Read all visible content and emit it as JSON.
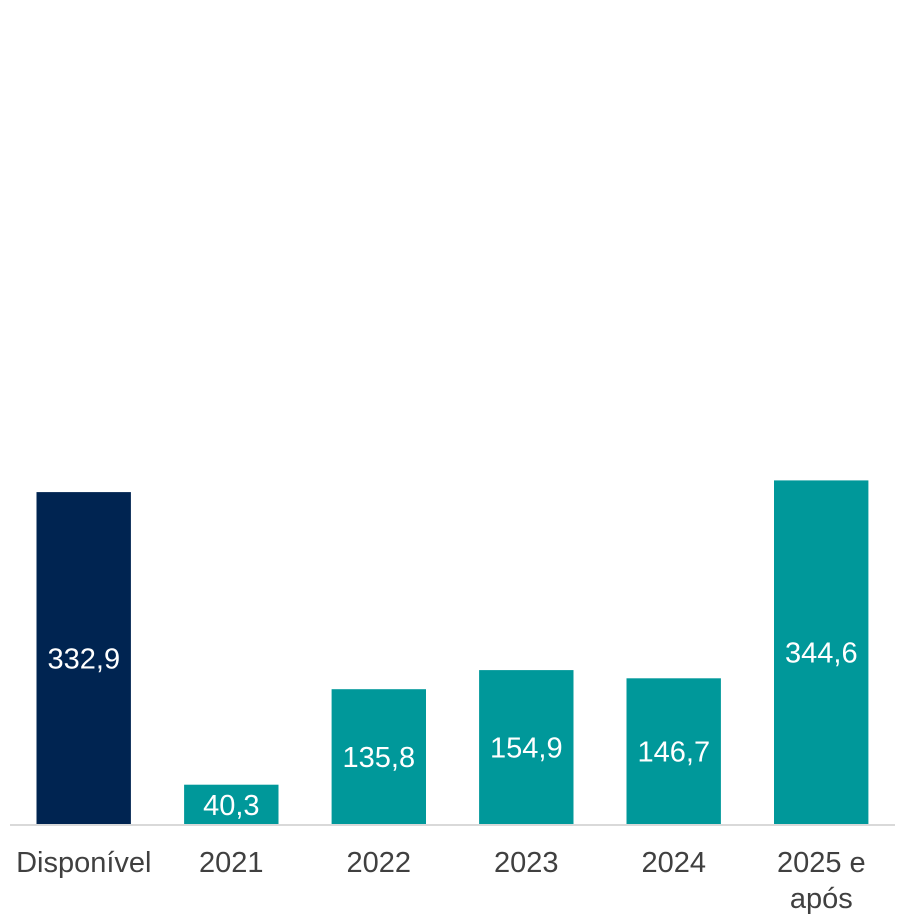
{
  "chart_data": {
    "type": "bar",
    "categories": [
      "Disponível",
      "2021",
      "2022",
      "2023",
      "2024",
      "2025 e após"
    ],
    "category_lines": [
      [
        "Disponível"
      ],
      [
        "2021"
      ],
      [
        "2022"
      ],
      [
        "2023"
      ],
      [
        "2024"
      ],
      [
        "2025 e",
        "após"
      ]
    ],
    "values": [
      332.9,
      40.3,
      135.8,
      154.9,
      146.7,
      344.6
    ],
    "value_labels": [
      "332,9",
      "40,3",
      "135,8",
      "154,9",
      "146,7",
      "344,6"
    ],
    "bar_colors": [
      "#002451",
      "#00989A",
      "#00989A",
      "#00989A",
      "#00989A",
      "#00989A"
    ],
    "title": "",
    "xlabel": "",
    "ylabel": "",
    "ylim": [
      0,
      800
    ],
    "grid": false,
    "legend": "none"
  }
}
